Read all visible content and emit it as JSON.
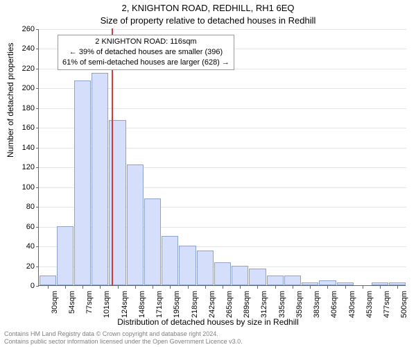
{
  "title_main": "2, KNIGHTON ROAD, REDHILL, RH1 6EQ",
  "title_sub": "Size of property relative to detached houses in Redhill",
  "y_axis_label": "Number of detached properties",
  "x_axis_label": "Distribution of detached houses by size in Redhill",
  "chart": {
    "type": "histogram",
    "background_color": "#ffffff",
    "grid_color": "#e5e5e5",
    "axis_color": "#666666",
    "bar_fill": "#d5defa",
    "bar_border": "#8fa2c9",
    "vline_color": "#d43a3a",
    "y": {
      "min": 0,
      "max": 260,
      "step": 20
    },
    "x_labels": [
      "30sqm",
      "54sqm",
      "77sqm",
      "101sqm",
      "124sqm",
      "148sqm",
      "171sqm",
      "195sqm",
      "218sqm",
      "242sqm",
      "265sqm",
      "289sqm",
      "312sqm",
      "335sqm",
      "359sqm",
      "383sqm",
      "406sqm",
      "430sqm",
      "453sqm",
      "477sqm",
      "500sqm"
    ],
    "bar_values": [
      10,
      60,
      207,
      215,
      167,
      122,
      88,
      50,
      40,
      35,
      23,
      20,
      17,
      10,
      10,
      3,
      5,
      3,
      0,
      3,
      3
    ],
    "vline_index": 3.7,
    "annotation": {
      "line1": "2 KNIGHTON ROAD: 116sqm",
      "line2": "← 39% of detached houses are smaller (396)",
      "line3": "61% of semi-detached houses are larger (628) →"
    }
  },
  "footer": {
    "line1": "Contains HM Land Registry data © Crown copyright and database right 2024.",
    "line2": "Contains public sector information licensed under the Open Government Licence v3.0."
  },
  "fonts": {
    "title": 13,
    "axis_label": 12,
    "tick": 11,
    "annotation": 11,
    "footer": 9
  }
}
